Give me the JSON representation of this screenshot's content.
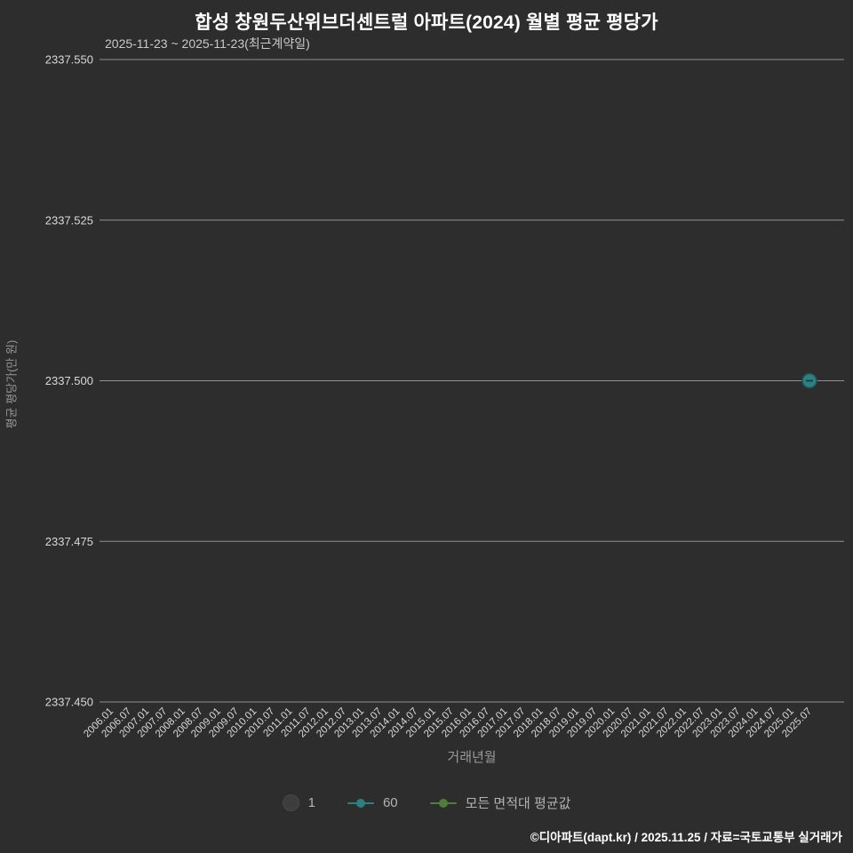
{
  "header": {
    "title": "합성 창원두산위브더센트럴 아파트(2024) 월별 평균 평당가",
    "subtitle": "2025-11-23 ~ 2025-11-23(최근계약일)"
  },
  "chart_data": {
    "type": "scatter",
    "title": "합성 창원두산위브더센트럴 아파트(2024) 월별 평균 평당가",
    "xlabel": "거래년월",
    "ylabel": "평균 평당가(만 원)",
    "ylim": [
      2337.45,
      2337.55
    ],
    "grid": true,
    "legend_position": "bottom",
    "y_ticks": [
      "2337.550",
      "2337.525",
      "2337.500",
      "2337.475",
      "2337.450"
    ],
    "x_ticks": [
      "2006.01",
      "2006.07",
      "2007.01",
      "2007.07",
      "2008.01",
      "2008.07",
      "2009.01",
      "2009.07",
      "2010.01",
      "2010.07",
      "2011.01",
      "2011.07",
      "2012.01",
      "2012.07",
      "2013.01",
      "2013.07",
      "2014.01",
      "2014.07",
      "2015.01",
      "2015.07",
      "2016.01",
      "2016.07",
      "2017.01",
      "2017.07",
      "2018.01",
      "2018.07",
      "2019.01",
      "2019.07",
      "2020.01",
      "2020.07",
      "2021.01",
      "2021.07",
      "2022.01",
      "2022.07",
      "2023.01",
      "2023.07",
      "2024.01",
      "2024.07",
      "2025.01",
      "2025.07"
    ],
    "series": [
      {
        "name": "1",
        "marker": "circle",
        "marker_color": "#3d3d3d",
        "points": []
      },
      {
        "name": "60",
        "marker": "line-dot",
        "marker_color": "#2e7f80",
        "points": [
          {
            "x": "2025.07",
            "y": 2337.5
          }
        ]
      },
      {
        "name": "모든 면적대 평균값",
        "marker": "line-dot",
        "marker_color": "#4f7d3b",
        "points": []
      }
    ]
  },
  "colors": {
    "background": "#2d2d2d",
    "gridline": "#909090",
    "tick_text": "#d9d9d9",
    "axis_label": "#9a9a9a",
    "point_fill": "#2e7f80",
    "point_stroke": "#1d5556",
    "point_dash": "#173f40"
  },
  "footer": {
    "credit": "©디아파트(dapt.kr) / 2025.11.25 / 자료=국토교통부 실거래가"
  }
}
